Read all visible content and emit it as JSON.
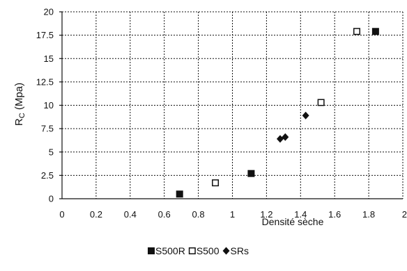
{
  "chart_data": {
    "type": "scatter",
    "title": "",
    "xlabel": "Densité sèche",
    "ylabel_main": "R",
    "ylabel_sub": "C",
    "ylabel_rest": " (Mpa)",
    "xlim": [
      0,
      2
    ],
    "ylim": [
      0,
      20
    ],
    "xticks": [
      0,
      0.2,
      0.4,
      0.6,
      0.8,
      1,
      1.2,
      1.4,
      1.6,
      1.8,
      2
    ],
    "xtick_labels": [
      "0",
      "0.2",
      "0.4",
      "0.6",
      "0.8",
      "1",
      "1.2",
      "1.4",
      "1.6",
      "1.8",
      "2"
    ],
    "yticks": [
      0,
      2.5,
      5,
      7.5,
      10,
      12.5,
      15,
      17.5,
      20
    ],
    "ytick_labels": [
      "0",
      "2.5",
      "5",
      "7.5",
      "10",
      "12.5",
      "15",
      "17.5",
      "20"
    ],
    "grid": true,
    "legend_position": "bottom-center",
    "series": [
      {
        "name": "S500R",
        "marker": "square-filled",
        "color": "#111111",
        "points": [
          [
            0.69,
            0.5
          ],
          [
            1.11,
            2.7
          ],
          [
            1.84,
            17.9
          ]
        ]
      },
      {
        "name": "S500",
        "marker": "square-open",
        "color": "#111111",
        "points": [
          [
            0.9,
            1.7
          ],
          [
            1.52,
            10.3
          ],
          [
            1.73,
            17.9
          ]
        ]
      },
      {
        "name": "SRs",
        "marker": "diamond-filled",
        "color": "#111111",
        "points": [
          [
            1.28,
            6.4
          ],
          [
            1.31,
            6.6
          ],
          [
            1.43,
            8.9
          ]
        ]
      }
    ]
  }
}
